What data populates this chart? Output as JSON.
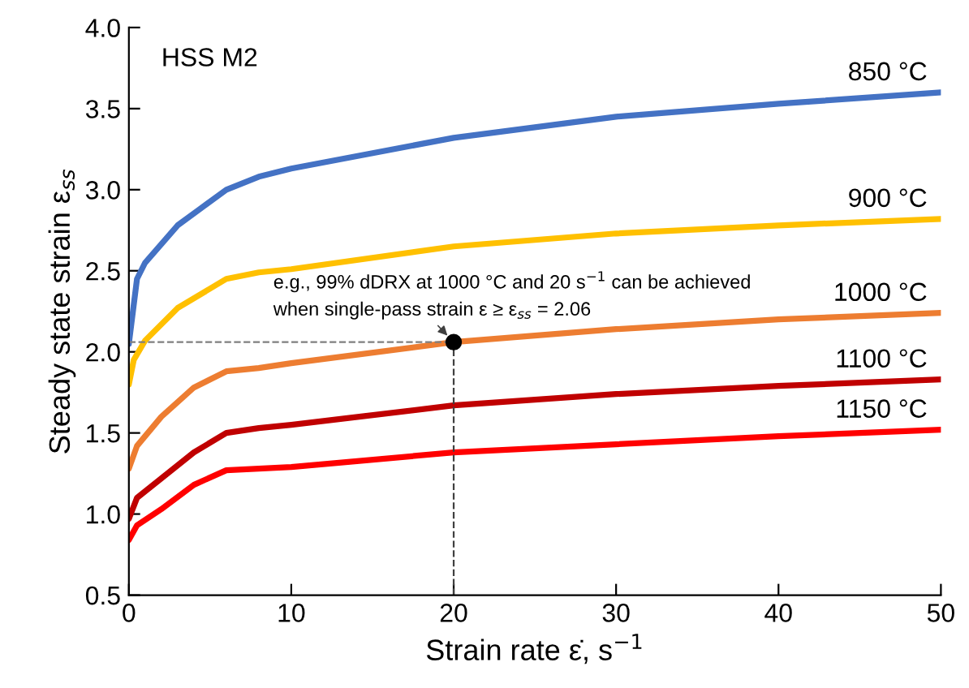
{
  "chart_data": {
    "type": "line",
    "xlabel": "Strain rate ε̇, s$^{−1}$",
    "ylabel": "Steady state strain ε$_{ss}$",
    "xlim": [
      0,
      50
    ],
    "ylim": [
      0.5,
      4.0
    ],
    "xticks": [
      0,
      10,
      20,
      30,
      40,
      50
    ],
    "yticks": [
      0.5,
      {
        "value": 1,
        "label": "1.0"
      },
      1.5,
      {
        "value": 2,
        "label": "2.0"
      },
      2.5,
      {
        "value": 3,
        "label": "3.0"
      },
      3.5,
      {
        "value": 4,
        "label": "4.0"
      }
    ],
    "grid": false,
    "legend": false,
    "marker": "none",
    "line_style": "solid",
    "annotations": [
      "HSS M2",
      "e.g., 99% dDRX at 1000 °C and 20 s$^{−1}$ can be achieved",
      {
        "text": "when single-pass strain ε ≥ ε$_{ss}$ = 2.06",
        "x": 20,
        "y": 2.06
      }
    ],
    "series": [
      {
        "name": "850 °C",
        "color": "#4472c4",
        "x": [
          0,
          0.5,
          1,
          3,
          6,
          8,
          10,
          20,
          30,
          40,
          50
        ],
        "values": [
          2.05,
          2.45,
          2.55,
          2.78,
          3.0,
          3.08,
          3.13,
          3.32,
          3.45,
          3.53,
          3.6
        ]
      },
      {
        "name": "900 °C",
        "color": "#ffc000",
        "x": [
          0,
          0.3,
          1,
          3,
          6,
          8,
          10,
          20,
          30,
          40,
          50
        ],
        "values": [
          1.8,
          1.95,
          2.07,
          2.27,
          2.45,
          2.49,
          2.51,
          2.65,
          2.73,
          2.78,
          2.82
        ]
      },
      {
        "name": "1000 °C",
        "color": "#ed7d31",
        "x": [
          0,
          0.5,
          2,
          4,
          6,
          8,
          10,
          20,
          30,
          40,
          50
        ],
        "values": [
          1.28,
          1.42,
          1.6,
          1.78,
          1.88,
          1.9,
          1.93,
          2.06,
          2.14,
          2.2,
          2.24
        ]
      },
      {
        "name": "1100 °C",
        "color": "#c00000",
        "x": [
          0,
          0.5,
          2,
          4,
          6,
          8,
          10,
          20,
          30,
          40,
          50
        ],
        "values": [
          0.97,
          1.1,
          1.22,
          1.38,
          1.5,
          1.53,
          1.55,
          1.67,
          1.74,
          1.79,
          1.83
        ]
      },
      {
        "name": "1150 °C",
        "color": "#ff0000",
        "x": [
          0,
          0.5,
          2,
          4,
          6,
          8,
          10,
          20,
          30,
          40,
          50
        ],
        "values": [
          0.84,
          0.93,
          1.03,
          1.18,
          1.27,
          1.28,
          1.29,
          1.38,
          1.43,
          1.48,
          1.52
        ]
      },
      {
        "type": "line",
        "line_style": "dashed",
        "color": "#7f7f7f",
        "x": [
          0,
          20
        ],
        "values": [
          2.06,
          2.06
        ]
      },
      {
        "type": "line",
        "line_style": "dashed",
        "color": "#404040",
        "x": [
          20,
          20
        ],
        "values": [
          0.5,
          2.06
        ]
      },
      {
        "type": "scatter",
        "marker": "circle",
        "color": "#000000",
        "x": [
          20
        ],
        "values": [
          2.06
        ]
      }
    ]
  }
}
